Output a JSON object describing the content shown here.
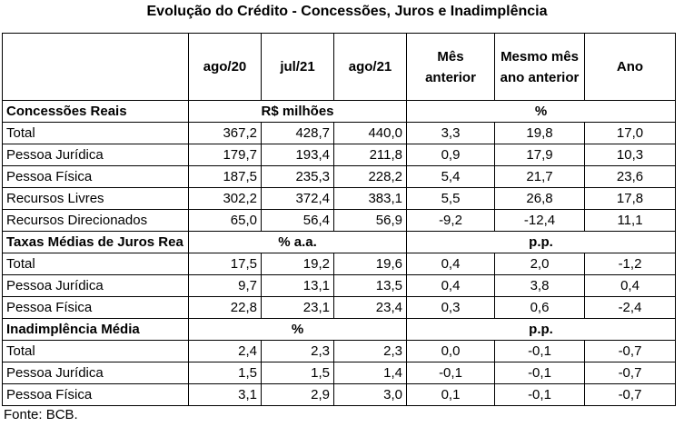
{
  "title": "Evolução do Crédito - Concessões, Juros e Inadimplência",
  "columns": [
    "ago/20",
    "jul/21",
    "ago/21"
  ],
  "change_columns": {
    "mes_anterior_line1": "Mês",
    "mes_anterior_line2": "anterior",
    "mesmo_mes_line1": "Mesmo mês",
    "mesmo_mes_line2": "ano anterior",
    "ano": "Ano"
  },
  "sections": [
    {
      "name": "Concessões Reais",
      "level_unit": "R$ milhões",
      "change_unit": "%",
      "rows": [
        {
          "label": "Total",
          "sub": false,
          "values": [
            "367,2",
            "428,7",
            "440,0"
          ],
          "changes": [
            "3,3",
            "19,8",
            "17,0"
          ]
        },
        {
          "label": "Pessoa Jurídica",
          "sub": true,
          "values": [
            "179,7",
            "193,4",
            "211,8"
          ],
          "changes": [
            "0,9",
            "17,9",
            "10,3"
          ]
        },
        {
          "label": "Pessoa Física",
          "sub": true,
          "values": [
            "187,5",
            "235,3",
            "228,2"
          ],
          "changes": [
            "5,4",
            "21,7",
            "23,6"
          ]
        },
        {
          "label": "Recursos Livres",
          "sub": true,
          "values": [
            "302,2",
            "372,4",
            "383,1"
          ],
          "changes": [
            "5,5",
            "26,8",
            "17,8"
          ]
        },
        {
          "label": "Recursos Direcionados",
          "sub": true,
          "values": [
            "65,0",
            "56,4",
            "56,9"
          ],
          "changes": [
            "-9,2",
            "-12,4",
            "11,1"
          ]
        }
      ]
    },
    {
      "name": "Taxas Médias de Juros Rea",
      "level_unit": "% a.a.",
      "change_unit": "p.p.",
      "rows": [
        {
          "label": "Total",
          "sub": false,
          "values": [
            "17,5",
            "19,2",
            "19,6"
          ],
          "changes": [
            "0,4",
            "2,0",
            "-1,2"
          ]
        },
        {
          "label": "Pessoa Jurídica",
          "sub": true,
          "values": [
            "9,7",
            "13,1",
            "13,5"
          ],
          "changes": [
            "0,4",
            "3,8",
            "0,4"
          ]
        },
        {
          "label": "Pessoa Física",
          "sub": true,
          "values": [
            "22,8",
            "23,1",
            "23,4"
          ],
          "changes": [
            "0,3",
            "0,6",
            "-2,4"
          ]
        }
      ]
    },
    {
      "name": "Inadimplência Média",
      "level_unit": "%",
      "change_unit": "p.p.",
      "rows": [
        {
          "label": "Total",
          "sub": false,
          "values": [
            "2,4",
            "2,3",
            "2,3"
          ],
          "changes": [
            "0,0",
            "-0,1",
            "-0,7"
          ]
        },
        {
          "label": "Pessoa Jurídica",
          "sub": true,
          "values": [
            "1,5",
            "1,5",
            "1,4"
          ],
          "changes": [
            "-0,1",
            "-0,1",
            "-0,7"
          ]
        },
        {
          "label": "Pessoa Física",
          "sub": true,
          "values": [
            "3,1",
            "2,9",
            "3,0"
          ],
          "changes": [
            "0,1",
            "-0,1",
            "-0,7"
          ]
        }
      ]
    }
  ],
  "source": "Fonte: BCB."
}
